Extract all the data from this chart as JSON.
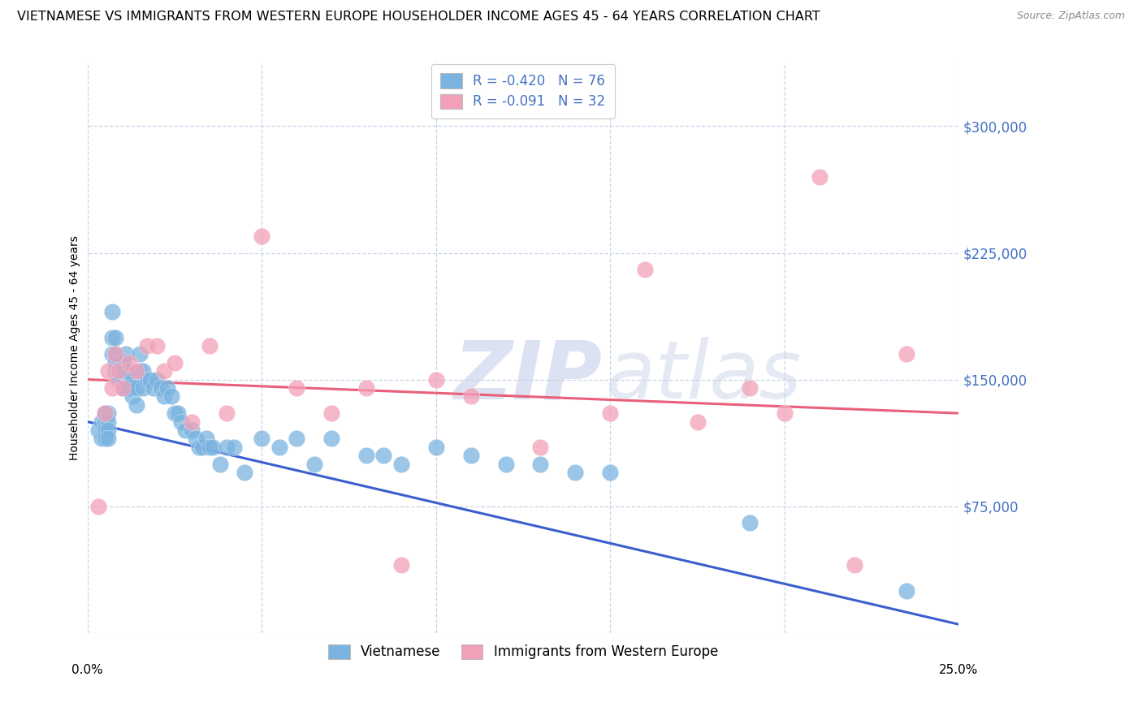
{
  "title": "VIETNAMESE VS IMMIGRANTS FROM WESTERN EUROPE HOUSEHOLDER INCOME AGES 45 - 64 YEARS CORRELATION CHART",
  "source": "Source: ZipAtlas.com",
  "ylabel": "Householder Income Ages 45 - 64 years",
  "xlim": [
    0.0,
    0.25
  ],
  "ylim": [
    0,
    337500
  ],
  "xticks": [
    0.0,
    0.05,
    0.1,
    0.15,
    0.2,
    0.25
  ],
  "yticks": [
    0,
    75000,
    150000,
    225000,
    300000
  ],
  "ytick_labels_right": [
    "",
    "$75,000",
    "$150,000",
    "$225,000",
    "$300,000"
  ],
  "watermark_zip": "ZIP",
  "watermark_atlas": "atlas",
  "blue_color": "#7ab3e0",
  "pink_color": "#f2a0b8",
  "blue_line_color": "#3a5fcd",
  "pink_line_color": "#e8607a",
  "blue_x": [
    0.003,
    0.004,
    0.004,
    0.005,
    0.005,
    0.005,
    0.005,
    0.006,
    0.006,
    0.006,
    0.006,
    0.007,
    0.007,
    0.007,
    0.008,
    0.008,
    0.008,
    0.008,
    0.009,
    0.009,
    0.009,
    0.01,
    0.01,
    0.01,
    0.011,
    0.011,
    0.011,
    0.012,
    0.012,
    0.013,
    0.013,
    0.014,
    0.014,
    0.015,
    0.015,
    0.016,
    0.016,
    0.017,
    0.018,
    0.019,
    0.02,
    0.021,
    0.022,
    0.023,
    0.024,
    0.025,
    0.026,
    0.027,
    0.028,
    0.03,
    0.031,
    0.032,
    0.033,
    0.034,
    0.035,
    0.036,
    0.038,
    0.04,
    0.042,
    0.045,
    0.05,
    0.055,
    0.06,
    0.065,
    0.07,
    0.08,
    0.085,
    0.09,
    0.1,
    0.11,
    0.12,
    0.13,
    0.14,
    0.15,
    0.19,
    0.235
  ],
  "blue_y": [
    120000,
    125000,
    115000,
    130000,
    125000,
    120000,
    115000,
    130000,
    125000,
    120000,
    115000,
    190000,
    175000,
    165000,
    175000,
    165000,
    160000,
    155000,
    160000,
    155000,
    150000,
    160000,
    155000,
    145000,
    165000,
    155000,
    145000,
    155000,
    145000,
    150000,
    140000,
    145000,
    135000,
    165000,
    155000,
    155000,
    145000,
    150000,
    150000,
    145000,
    150000,
    145000,
    140000,
    145000,
    140000,
    130000,
    130000,
    125000,
    120000,
    120000,
    115000,
    110000,
    110000,
    115000,
    110000,
    110000,
    100000,
    110000,
    110000,
    95000,
    115000,
    110000,
    115000,
    100000,
    115000,
    105000,
    105000,
    100000,
    110000,
    105000,
    100000,
    100000,
    95000,
    95000,
    65000,
    25000
  ],
  "pink_x": [
    0.003,
    0.005,
    0.006,
    0.007,
    0.008,
    0.009,
    0.01,
    0.012,
    0.014,
    0.017,
    0.02,
    0.022,
    0.025,
    0.03,
    0.035,
    0.04,
    0.05,
    0.06,
    0.07,
    0.08,
    0.09,
    0.1,
    0.11,
    0.13,
    0.15,
    0.16,
    0.175,
    0.19,
    0.2,
    0.21,
    0.22,
    0.235
  ],
  "pink_y": [
    75000,
    130000,
    155000,
    145000,
    165000,
    155000,
    145000,
    160000,
    155000,
    170000,
    170000,
    155000,
    160000,
    125000,
    170000,
    130000,
    235000,
    145000,
    130000,
    145000,
    40000,
    150000,
    140000,
    110000,
    130000,
    215000,
    125000,
    145000,
    130000,
    270000,
    40000,
    165000
  ],
  "blue_trend_x": [
    0.0,
    0.25
  ],
  "blue_trend_y": [
    125000,
    5000
  ],
  "pink_trend_x": [
    0.0,
    0.25
  ],
  "pink_trend_y": [
    150000,
    130000
  ],
  "background_color": "#ffffff",
  "grid_color": "#c8d4e8",
  "title_fontsize": 11.5,
  "axis_label_fontsize": 10,
  "tick_fontsize": 11
}
